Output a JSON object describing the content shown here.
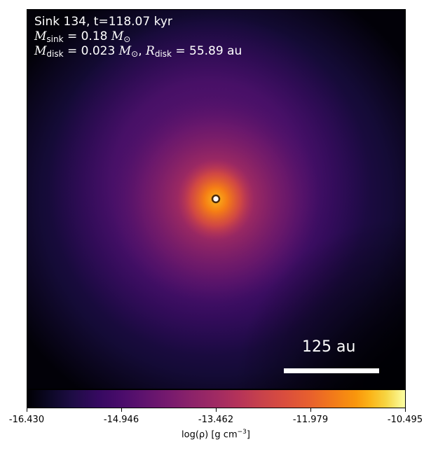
{
  "caption": {
    "line1": "Sink 134, t=118.07 kyr",
    "m_sink_symbol": "M",
    "m_sink_sub": "sink",
    "m_sink_value": " = 0.18 ",
    "m_sink_unit": "M",
    "m_sink_unit_sub": "⊙",
    "m_disk_symbol": "M",
    "m_disk_sub": "disk",
    "m_disk_value": " = 0.023 ",
    "m_disk_unit": "M",
    "m_disk_unit_sub": "⊙",
    "separator": ", ",
    "r_disk_symbol": "R",
    "r_disk_sub": "disk",
    "r_disk_value": " = 55.89 au"
  },
  "scalebar": {
    "label": "125 au"
  },
  "colorbar": {
    "colormap": "inferno",
    "ticks": [
      "-16.430",
      "-14.946",
      "-13.462",
      "-11.979",
      "-10.495"
    ],
    "label_prefix": "log(ρ) [g cm",
    "label_sup": "−3",
    "label_suffix": "]"
  },
  "colors": {
    "sink_marker_fill": "#ffffff",
    "sink_marker_edge": "#4a2a0a",
    "text_overlay": "#ffffff"
  }
}
